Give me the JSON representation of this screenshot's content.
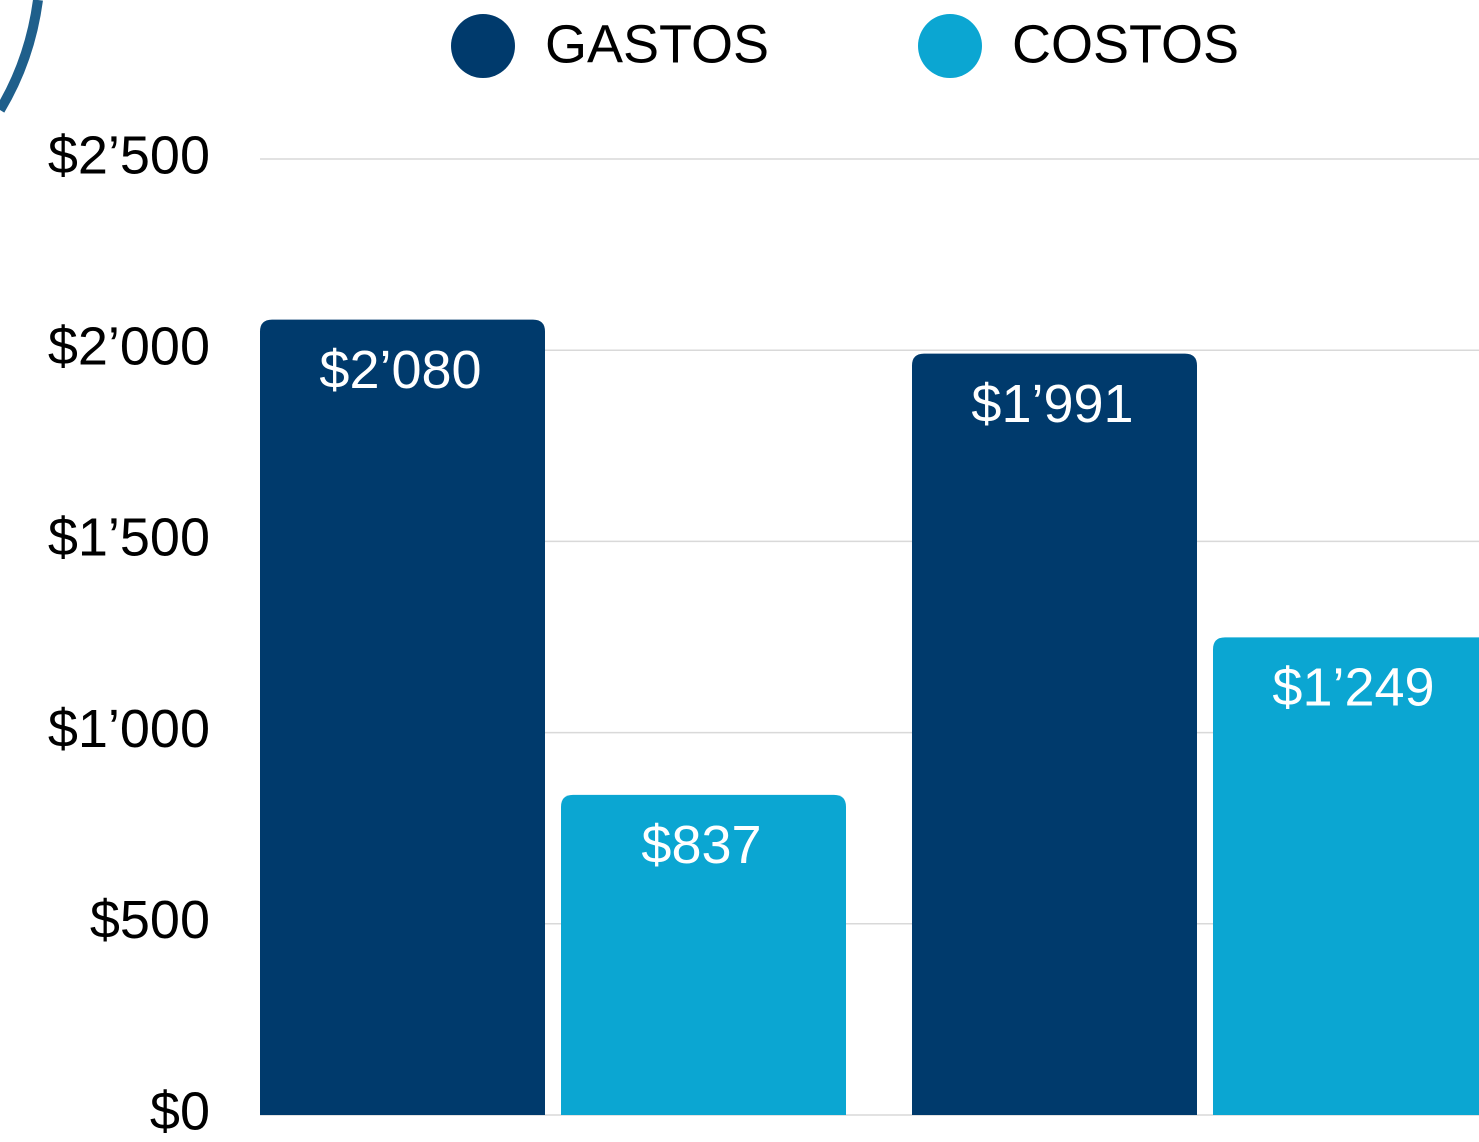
{
  "chart_data": {
    "type": "bar",
    "categories": [
      null,
      null
    ],
    "series": [
      {
        "name": "GASTOS",
        "color": "#003a6c",
        "values": [
          2080,
          1991
        ],
        "value_labels": [
          "$2’080",
          "$1’991"
        ]
      },
      {
        "name": "COSTOS",
        "color": "#0ba6d2",
        "values": [
          837,
          1249
        ],
        "value_labels": [
          "$837",
          "$1’249"
        ]
      }
    ],
    "ylim": [
      0,
      2500
    ],
    "yticks": [
      {
        "value": 0,
        "label": "$0"
      },
      {
        "value": 500,
        "label": "$500"
      },
      {
        "value": 1000,
        "label": "$1’000"
      },
      {
        "value": 1500,
        "label": "$1’500"
      },
      {
        "value": 2000,
        "label": "$2’000"
      },
      {
        "value": 2500,
        "label": "$2’500"
      }
    ],
    "grid": true,
    "legend": "top"
  }
}
